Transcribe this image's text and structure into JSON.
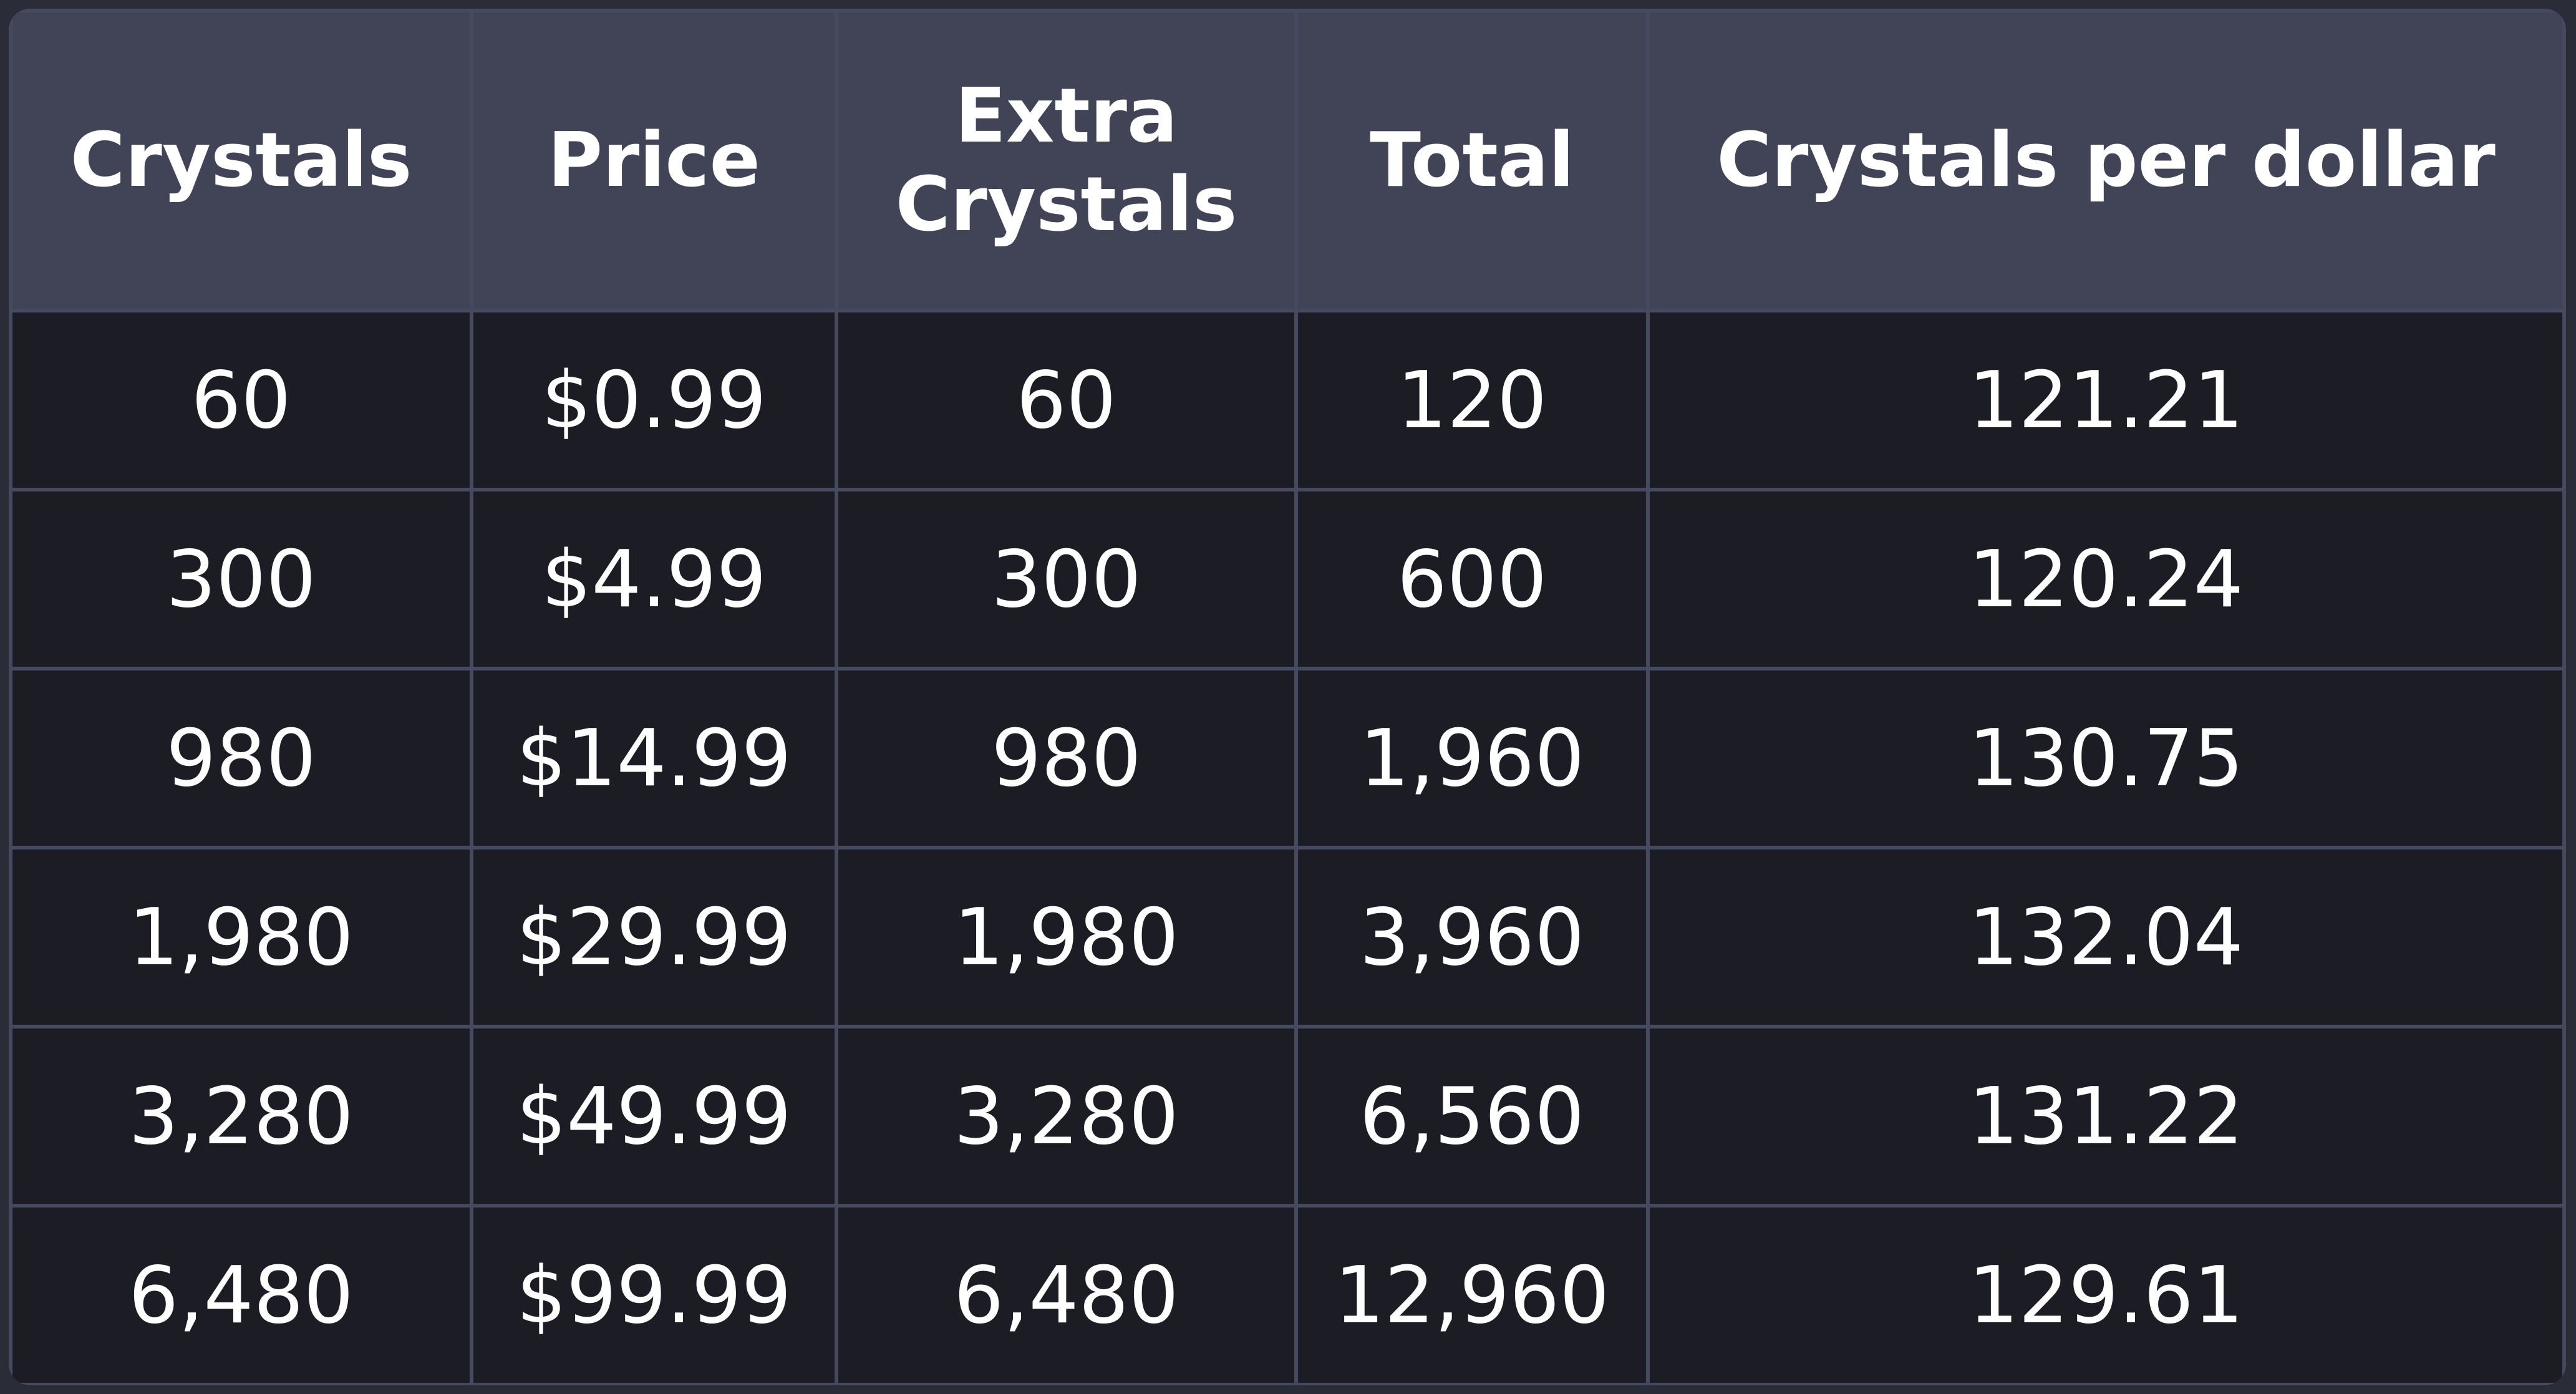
{
  "table": {
    "headers": [
      [
        "Crystals"
      ],
      [
        "Price"
      ],
      [
        "Extra",
        "Crystals"
      ],
      [
        "Total"
      ],
      [
        "Crystals per dollar"
      ]
    ],
    "rows": [
      [
        "60",
        "$0.99",
        "60",
        "120",
        "121.21"
      ],
      [
        "300",
        "$4.99",
        "300",
        "600",
        "120.24"
      ],
      [
        "980",
        "$14.99",
        "980",
        "1,960",
        "130.75"
      ],
      [
        "1,980",
        "$29.99",
        "1,980",
        "3,960",
        "132.04"
      ],
      [
        "3,280",
        "$49.99",
        "3,280",
        "6,560",
        "131.22"
      ],
      [
        "6,480",
        "$99.99",
        "6,480",
        "12,960",
        "129.61"
      ]
    ]
  },
  "colors": {
    "page_background": "#2a2d37",
    "header_background": "#404456",
    "cell_background": "#1c1d24",
    "grid_lines": "#454a5e",
    "text": "#ffffff"
  }
}
